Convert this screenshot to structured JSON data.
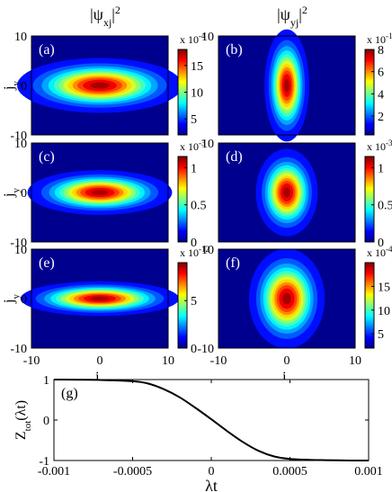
{
  "chart_data": {
    "type": "heatmap",
    "column_titles": [
      "|ψ<sub>xj</sub>|²",
      "|ψ<sub>yj</sub>|²"
    ],
    "column_title_parts": [
      {
        "base": "|ψ",
        "sub": "xj",
        "close": "|",
        "sup": "2"
      },
      {
        "base": "|ψ",
        "sub": "yj",
        "close": "|",
        "sup": "2"
      }
    ],
    "panels": [
      {
        "label": "(a)",
        "sigma_x": 4.8,
        "sigma_y": 2.2,
        "cb_exp": "x 10",
        "cb_pow": "-4",
        "cb_ticks": [
          "15",
          "10",
          "5"
        ],
        "cb_tick_vals": [
          15,
          10,
          5
        ],
        "cb_range": [
          2,
          18
        ]
      },
      {
        "label": "(b)",
        "sigma_x": 1.3,
        "sigma_y": 4.5,
        "cb_exp": "x 10",
        "cb_pow": "-12",
        "cb_ticks": [
          "8",
          "6",
          "4",
          "2"
        ],
        "cb_tick_vals": [
          8,
          6,
          4,
          2
        ],
        "cb_range": [
          0.3,
          8
        ]
      },
      {
        "label": "(c)",
        "sigma_x": 4.2,
        "sigma_y": 1.8,
        "cb_exp": "x 10",
        "cb_pow": "-3",
        "cb_ticks": [
          "1",
          "0.5",
          "0"
        ],
        "cb_tick_vals": [
          1,
          0.5,
          0
        ],
        "cb_range": [
          0,
          1.15
        ]
      },
      {
        "label": "(d)",
        "sigma_x": 1.8,
        "sigma_y": 3.5,
        "cb_exp": "x 10",
        "cb_pow": "-3",
        "cb_ticks": [
          "1",
          "0.5",
          "0"
        ],
        "cb_tick_vals": [
          1,
          0.5,
          0
        ],
        "cb_range": [
          0,
          1.15
        ]
      },
      {
        "label": "(e)",
        "sigma_x": 4.6,
        "sigma_y": 1.4,
        "cb_exp": "x 10",
        "cb_pow": "-12",
        "cb_ticks": [
          "5",
          "0"
        ],
        "cb_tick_vals": [
          5,
          0
        ],
        "cb_range": [
          0,
          9
        ]
      },
      {
        "label": "(f)",
        "sigma_x": 2.2,
        "sigma_y": 4.0,
        "cb_exp": "x 10",
        "cb_pow": "-4",
        "cb_ticks": [
          "15",
          "10",
          "5"
        ],
        "cb_tick_vals": [
          15,
          10,
          5
        ],
        "cb_range": [
          2,
          20
        ]
      }
    ],
    "heatmap_axis": {
      "xlim": [
        -10,
        10
      ],
      "ylim": [
        -10,
        10
      ],
      "yticks": [
        "10",
        "0",
        "-10"
      ],
      "xticks": [
        "-10",
        "0",
        "10"
      ],
      "ylabel_base": "j",
      "ylabel_sub": "y",
      "xlabel_base": "j",
      "xlabel_sub": "x"
    },
    "line_panel": {
      "type": "line",
      "label": "(g)",
      "xlim": [
        -0.001,
        0.001
      ],
      "ylim": [
        -1,
        1
      ],
      "xticks": [
        "-0.001",
        "-0.0005",
        "0",
        "0.0005",
        "0.001"
      ],
      "xtick_vals": [
        -0.001,
        -0.0005,
        0,
        0.0005,
        0.001
      ],
      "yticks": [
        "1",
        "0",
        "-1"
      ],
      "ytick_vals": [
        1,
        0,
        -1
      ],
      "xlabel": "λt",
      "ylabel_base": "Z",
      "ylabel_sub": "tot",
      "ylabel_tail": "(λt)",
      "x": [
        -0.001,
        -0.0007,
        -0.0005,
        -0.0004,
        -0.0003,
        -0.0002,
        -0.0001,
        0,
        0.0001,
        0.0002,
        0.0003,
        0.0004,
        0.0005,
        0.0007,
        0.001
      ],
      "y": [
        1.0,
        0.99,
        0.96,
        0.9,
        0.76,
        0.56,
        0.3,
        0.02,
        -0.27,
        -0.54,
        -0.76,
        -0.9,
        -0.96,
        -0.99,
        -1.0
      ]
    }
  }
}
